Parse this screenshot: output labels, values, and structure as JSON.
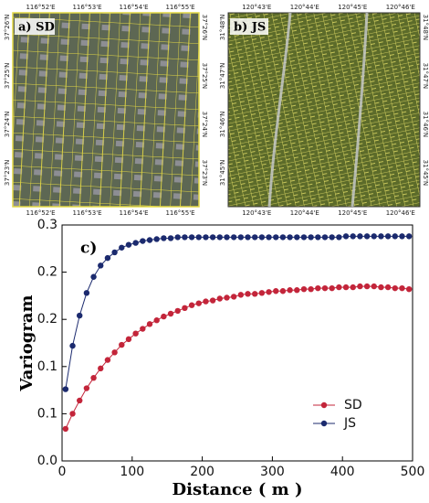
{
  "panels": [
    {
      "label": "a) SD",
      "lon": [
        "116°52'E",
        "116°53'E",
        "116°54'E",
        "116°55'E"
      ],
      "lat": [
        "37°26'N",
        "37°25'N",
        "37°24'N",
        "37°23'N"
      ]
    },
    {
      "label": "b) JS",
      "lon": [
        "120°43'E",
        "120°44'E",
        "120°45'E",
        "120°46'E"
      ],
      "lat": [
        "31°48'N",
        "31°47'N",
        "31°46'N",
        "31°45'N"
      ]
    }
  ],
  "chart_data": {
    "type": "line",
    "title": "c)",
    "xlabel": "Distance ( m )",
    "ylabel": "Variogram",
    "x": [
      5,
      15,
      25,
      35,
      45,
      55,
      65,
      75,
      85,
      95,
      105,
      115,
      125,
      135,
      145,
      155,
      165,
      175,
      185,
      195,
      205,
      215,
      225,
      235,
      245,
      255,
      265,
      275,
      285,
      295,
      305,
      315,
      325,
      335,
      345,
      355,
      365,
      375,
      385,
      395,
      405,
      415,
      425,
      435,
      445,
      455,
      465,
      475,
      485,
      495
    ],
    "series": [
      {
        "name": "SD",
        "color": "#c3253a",
        "values": [
          0.034,
          0.05,
          0.064,
          0.077,
          0.088,
          0.098,
          0.107,
          0.115,
          0.123,
          0.129,
          0.135,
          0.14,
          0.145,
          0.149,
          0.153,
          0.156,
          0.159,
          0.162,
          0.165,
          0.167,
          0.169,
          0.17,
          0.172,
          0.173,
          0.174,
          0.176,
          0.177,
          0.177,
          0.178,
          0.179,
          0.18,
          0.18,
          0.181,
          0.181,
          0.182,
          0.182,
          0.183,
          0.183,
          0.183,
          0.184,
          0.184,
          0.184,
          0.185,
          0.185,
          0.185,
          0.184,
          0.184,
          0.183,
          0.183,
          0.182
        ]
      },
      {
        "name": "JS",
        "color": "#1b2a6e",
        "values": [
          0.076,
          0.122,
          0.154,
          0.178,
          0.195,
          0.207,
          0.215,
          0.221,
          0.226,
          0.229,
          0.231,
          0.233,
          0.234,
          0.235,
          0.236,
          0.236,
          0.237,
          0.237,
          0.237,
          0.237,
          0.237,
          0.237,
          0.237,
          0.237,
          0.237,
          0.237,
          0.237,
          0.237,
          0.237,
          0.237,
          0.237,
          0.237,
          0.237,
          0.237,
          0.237,
          0.237,
          0.237,
          0.237,
          0.237,
          0.237,
          0.238,
          0.238,
          0.238,
          0.238,
          0.238,
          0.238,
          0.238,
          0.238,
          0.238,
          0.238
        ]
      }
    ],
    "xlim": [
      0,
      500
    ],
    "xticks": [
      0,
      100,
      200,
      300,
      400,
      500
    ],
    "ylim": [
      0,
      0.25
    ],
    "yticks": [
      {
        "value": 0,
        "label": "0.0"
      },
      {
        "value": 0.05,
        "label": "0.1"
      },
      {
        "value": 0.1,
        "label": "0.1"
      },
      {
        "value": 0.15,
        "label": "0.2"
      },
      {
        "value": 0.2,
        "label": "0.2"
      },
      {
        "value": 0.25,
        "label": "0.3"
      }
    ],
    "legend": "lower right"
  }
}
